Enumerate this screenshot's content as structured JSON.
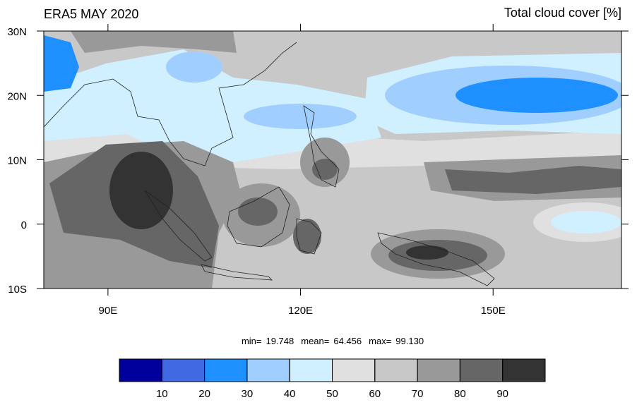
{
  "chart_data": {
    "type": "map",
    "title": "ERA5 MAY 2020",
    "subtitle": "Total cloud cover [%]",
    "xlim": [
      80,
      170
    ],
    "ylim": [
      -10,
      30
    ],
    "xticks": [
      {
        "value": 90,
        "label": "90E"
      },
      {
        "value": 120,
        "label": "120E"
      },
      {
        "value": 150,
        "label": "150E"
      }
    ],
    "yticks": [
      {
        "value": 30,
        "label": "30N"
      },
      {
        "value": 20,
        "label": "20N"
      },
      {
        "value": 10,
        "label": "10N"
      },
      0,
      {
        "value": -10,
        "label": "10S"
      }
    ],
    "stats": [
      {
        "name": "min=",
        "value": "19.748"
      },
      {
        "name": "mean=",
        "value": "64.456"
      },
      {
        "name": "max=",
        "value": "99.130"
      }
    ],
    "colorbar": {
      "levels": [
        10,
        20,
        30,
        40,
        50,
        60,
        70,
        80,
        90
      ],
      "colors": [
        "#00009c",
        "#4169e1",
        "#1e90ff",
        "#a0cfff",
        "#d0f0ff",
        "#e0e0e0",
        "#c8c8c8",
        "#999999",
        "#666666",
        "#333333"
      ]
    }
  }
}
